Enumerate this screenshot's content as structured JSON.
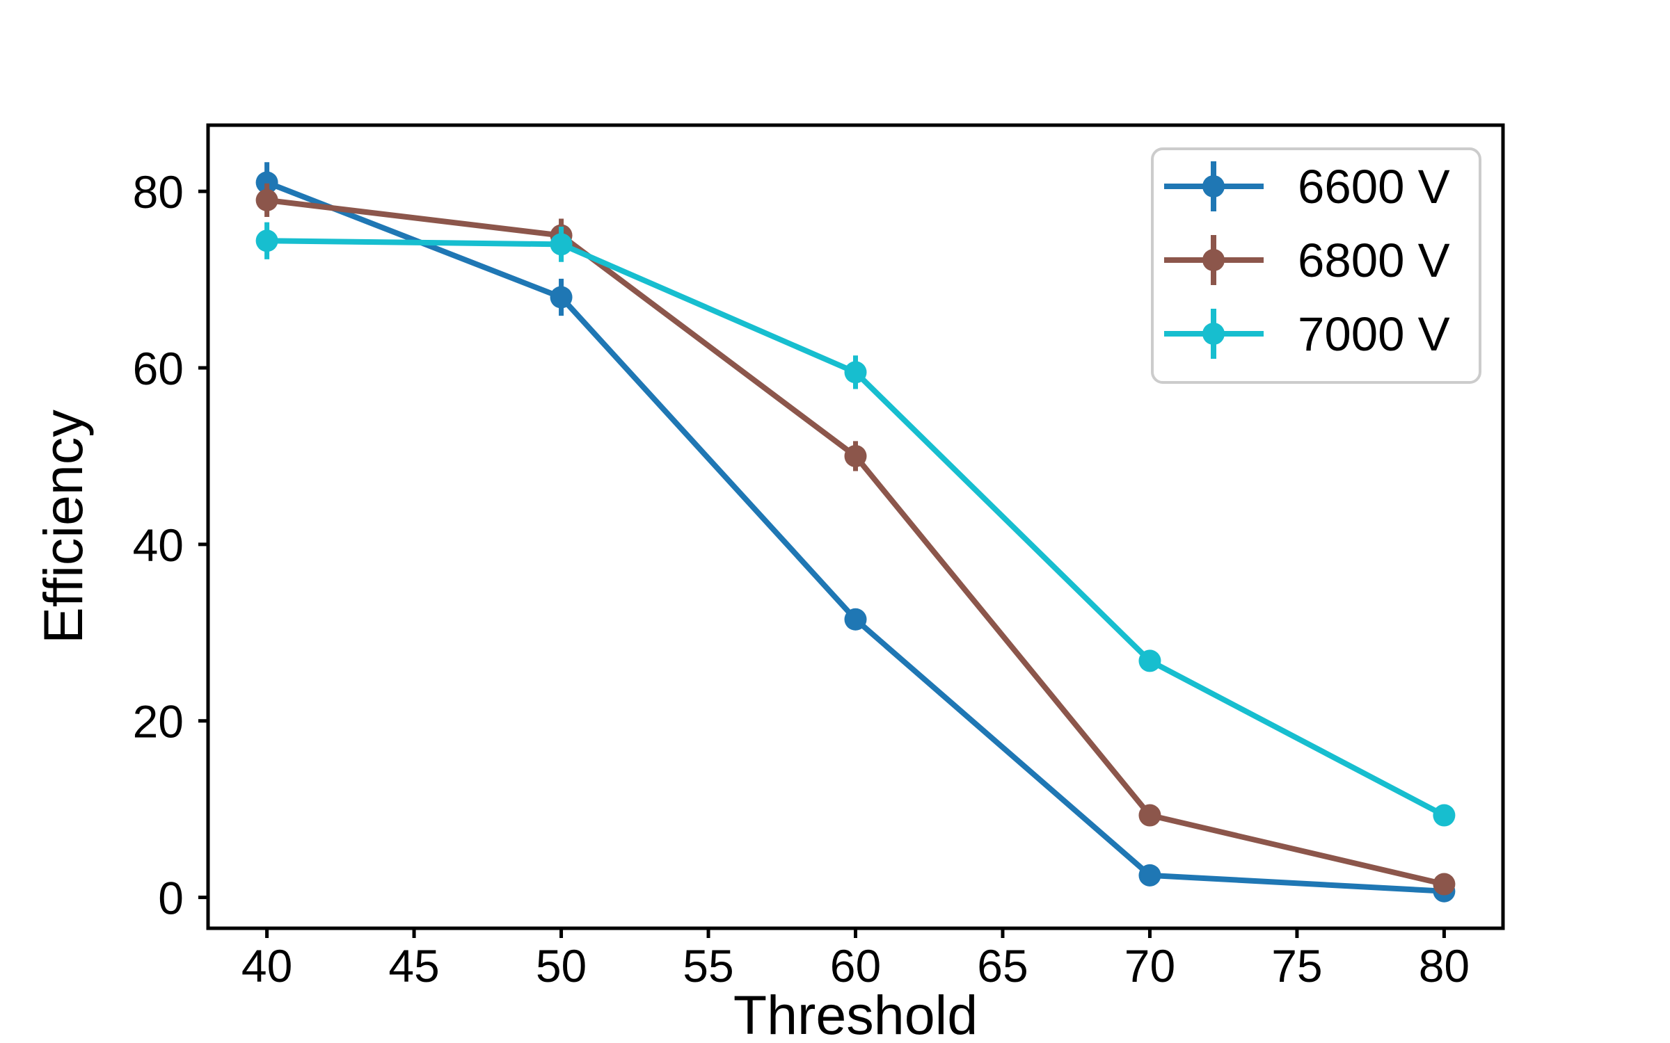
{
  "figure": {
    "background": "#ffffff",
    "frame_color": "#000000",
    "text_color": "#000000"
  },
  "chart_data": {
    "type": "line",
    "title": "",
    "xlabel": "Threshold",
    "ylabel": "Efficiency",
    "xlim": [
      38,
      82
    ],
    "ylim": [
      -3.5,
      87.5
    ],
    "xticks": [
      40,
      45,
      50,
      55,
      60,
      65,
      70,
      75,
      80
    ],
    "yticks": [
      0,
      20,
      40,
      60,
      80
    ],
    "grid": false,
    "marker": "circle",
    "x": [
      40,
      50,
      60,
      70,
      80
    ],
    "series": [
      {
        "name": "6600 V",
        "color": "#1f77b4",
        "values": [
          81,
          68,
          31.5,
          2.5,
          0.7
        ],
        "yerr": [
          2.3,
          2.1,
          1.2,
          0.5,
          0.4
        ]
      },
      {
        "name": "6800 V",
        "color": "#8c564b",
        "values": [
          79,
          75,
          50,
          9.3,
          1.5
        ],
        "yerr": [
          1.9,
          1.9,
          1.7,
          0.6,
          0.4
        ]
      },
      {
        "name": "7000 V",
        "color": "#17becf",
        "values": [
          74.4,
          74,
          59.5,
          26.8,
          9.3
        ],
        "yerr": [
          2.1,
          2.0,
          1.9,
          0.8,
          0.5
        ]
      }
    ],
    "legend": {
      "position": "upper right",
      "border_color": "#cccccc",
      "labels": [
        "6600 V",
        "6800 V",
        "7000 V"
      ]
    }
  }
}
